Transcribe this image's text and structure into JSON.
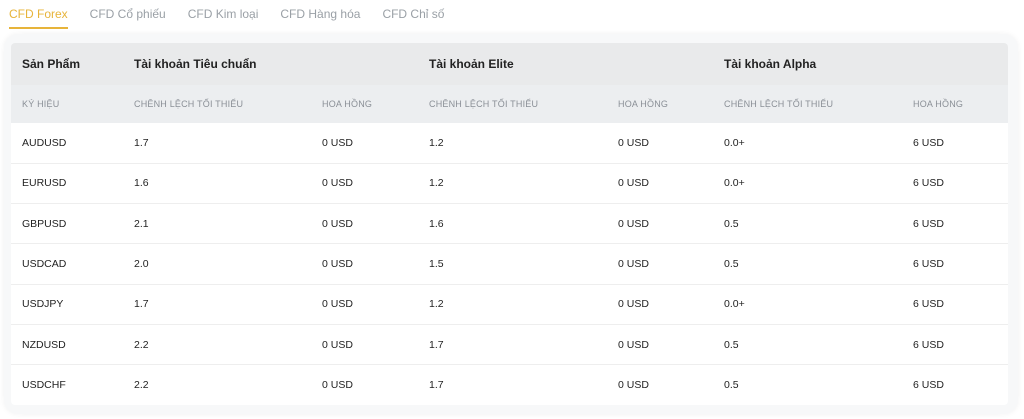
{
  "tabs": [
    {
      "label": "CFD Forex",
      "active": true
    },
    {
      "label": "CFD Cổ phiếu",
      "active": false
    },
    {
      "label": "CFD Kim loại",
      "active": false
    },
    {
      "label": "CFD Hàng hóa",
      "active": false
    },
    {
      "label": "CFD Chỉ số",
      "active": false
    }
  ],
  "colors": {
    "accent": "#e7b43a",
    "tab_inactive": "#9aa0a6",
    "header_bg": "#e9eaeb"
  },
  "table": {
    "group_headers": [
      "Sản Phẩm",
      "Tài khoản Tiêu chuẩn",
      "Tài khoản Elite",
      "Tài khoản Alpha"
    ],
    "sub_headers": [
      "KÝ HIỆU",
      "CHÊNH LỆCH TỐI THIỂU",
      "HOA HỒNG",
      "CHÊNH LỆCH TỐI THIỂU",
      "HOA HỒNG",
      "CHÊNH LỆCH TỐI THIỂU",
      "HOA HỒNG"
    ],
    "rows": [
      [
        "AUDUSD",
        "1.7",
        "0 USD",
        "1.2",
        "0 USD",
        "0.0+",
        "6 USD"
      ],
      [
        "EURUSD",
        "1.6",
        "0 USD",
        "1.2",
        "0 USD",
        "0.0+",
        "6 USD"
      ],
      [
        "GBPUSD",
        "2.1",
        "0 USD",
        "1.6",
        "0 USD",
        "0.5",
        "6 USD"
      ],
      [
        "USDCAD",
        "2.0",
        "0 USD",
        "1.5",
        "0 USD",
        "0.5",
        "6 USD"
      ],
      [
        "USDJPY",
        "1.7",
        "0 USD",
        "1.2",
        "0 USD",
        "0.0+",
        "6 USD"
      ],
      [
        "NZDUSD",
        "2.2",
        "0 USD",
        "1.7",
        "0 USD",
        "0.5",
        "6 USD"
      ],
      [
        "USDCHF",
        "2.2",
        "0 USD",
        "1.7",
        "0 USD",
        "0.5",
        "6 USD"
      ]
    ]
  }
}
